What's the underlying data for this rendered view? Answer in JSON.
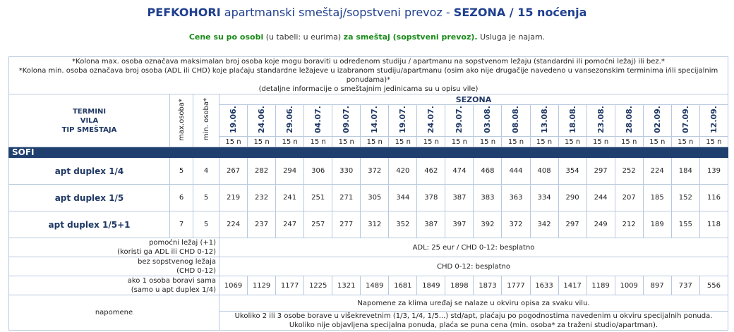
{
  "header": {
    "title_place": "PEFKOHORI",
    "title_middle": "apartmanski smeštaj/sopstveni prevoz -",
    "title_season": "SEZONA / 15 noćenja",
    "subtitle": [
      "Cene su po osobi",
      "(u tabeli: u eurima)",
      "za smeštaj (sopstveni prevoz).",
      "Usluga je najam."
    ]
  },
  "notes": [
    "*Kolona max. osoba označava maksimalan broj osoba koje mogu boraviti u određenom studiju / apartmanu na sopstvenom ležaju (standardni ili pomoćni ležaj) ili bez.*",
    "*Kolona min. osoba označava broj osoba (ADL ili CHD) koje plaćaju standardne ležajeve u izabranom studiju/apartmanu (osim ako nije drugačije navedeno u vansezonskim terminima i/ili specijalnim ponudama)*",
    "(detaljne informacije o smeštajnim jedinicama su u opisu vile)"
  ],
  "table": {
    "header_label": [
      "TERMINI",
      "VILA",
      "TIP SMEŠTAJA"
    ],
    "max_header": "max.osoba*",
    "min_header": "min. osoba*",
    "season": "SEZONA",
    "dates": [
      "19.06.",
      "24.06.",
      "29.06.",
      "04.07.",
      "09.07.",
      "14.07.",
      "19.07.",
      "24.07.",
      "29.07.",
      "03.08.",
      "08.08.",
      "13.08.",
      "18.08.",
      "23.08.",
      "28.08.",
      "02.09.",
      "07.09.",
      "12.09."
    ],
    "nights": [
      "15 n",
      "15 n",
      "15 n",
      "15 n",
      "15 n",
      "15 n",
      "15 n",
      "15 n",
      "15 n",
      "15 n",
      "15 n",
      "15 n",
      "15 n",
      "15 n",
      "15 n",
      "15 n",
      "15 n",
      "15 n"
    ],
    "section": "SOFI",
    "rows": [
      {
        "name": "apt duplex 1/4",
        "max": 5,
        "min": 4,
        "prices": [
          267,
          282,
          294,
          306,
          330,
          372,
          420,
          462,
          474,
          468,
          444,
          408,
          354,
          297,
          252,
          224,
          184,
          139
        ]
      },
      {
        "name": "apt duplex 1/5",
        "max": 6,
        "min": 5,
        "prices": [
          219,
          232,
          241,
          251,
          271,
          305,
          344,
          378,
          387,
          383,
          363,
          334,
          290,
          244,
          207,
          185,
          152,
          116
        ]
      },
      {
        "name": "apt duplex 1/5+1",
        "max": 7,
        "min": 5,
        "prices": [
          224,
          237,
          247,
          257,
          277,
          312,
          352,
          387,
          397,
          392,
          372,
          342,
          297,
          249,
          212,
          189,
          155,
          118
        ]
      }
    ],
    "extra_bed": {
      "label": [
        "pomoćni ležaj (+1)",
        "(koristi ga ADL ili CHD 0-12)"
      ],
      "text": "ADL: 25 eur / CHD 0-12: besplatno"
    },
    "no_bed": {
      "label": [
        "bez sopstvenog ležaja",
        "(CHD 0-12)"
      ],
      "text": "CHD 0-12: besplatno"
    },
    "single": {
      "label": [
        "ako 1 osoba boravi sama",
        "(samo u apt duplex 1/4)"
      ],
      "prices": [
        1069,
        1129,
        1177,
        1225,
        1321,
        1489,
        1681,
        1849,
        1898,
        1873,
        1777,
        1633,
        1417,
        1189,
        1009,
        897,
        737,
        556
      ]
    },
    "remarks": {
      "label": "napomene",
      "note1": "Napomene za klima uređaj se nalaze u okviru opisa za svaku vilu.",
      "note2": [
        "Ukoliko 2 ili 3 osobe borave u višekrevetnim (1/3, 1/4, 1/5...) std/apt, plaćaju po pogodnostima navedenim u okviru specijalnih ponuda.",
        "Ukoliko nije objavljena specijalna ponuda, plaća se puna cena (min. osoba* za traženi studio/apartman)."
      ]
    }
  }
}
